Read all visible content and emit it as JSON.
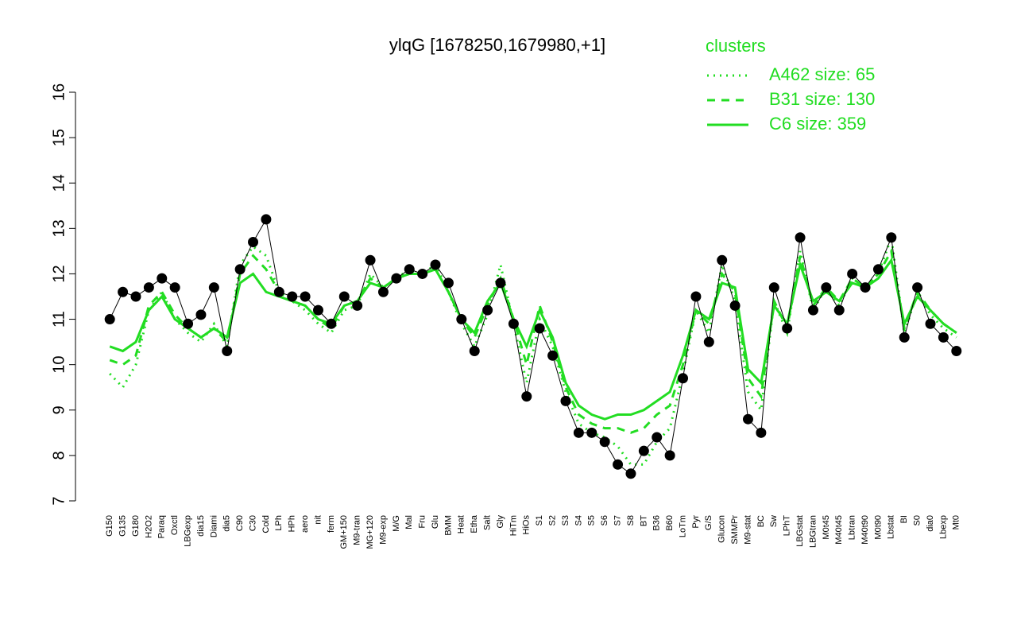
{
  "chart_data": {
    "type": "line",
    "title": "ylqG [1678250,1679980,+1]",
    "legend_title": "clusters",
    "categories": [
      "G150",
      "G135",
      "G180",
      "H2O2",
      "Paraq",
      "Oxctl",
      "LBGexp",
      "dia15",
      "Diami",
      "dia5",
      "C90",
      "C30",
      "Cold",
      "LPh",
      "HPh",
      "aero",
      "nit",
      "ferm",
      "GM+150",
      "M9-tran",
      "MG+120",
      "M9-exp",
      "M/G",
      "Mal",
      "Fru",
      "Glu",
      "BMM",
      "Heat",
      "Etha",
      "Salt",
      "Gly",
      "HiTm",
      "HiOs",
      "S1",
      "S2",
      "S3",
      "S4",
      "S5",
      "S6",
      "S7",
      "S8",
      "BT",
      "B36",
      "B60",
      "LoTm",
      "Pyr",
      "G/S",
      "Glucon",
      "SMMPr",
      "M9-stat",
      "BC",
      "Sw",
      "LPhT",
      "LBGstat",
      "LBGtran",
      "M0t45",
      "M40t45",
      "Lbtran",
      "M40t90",
      "M0t90",
      "Lbstat",
      "BI",
      "S0",
      "dia0",
      "Lbexp",
      "Mt0"
    ],
    "values": [
      11.0,
      11.6,
      11.5,
      11.7,
      11.9,
      11.7,
      10.9,
      11.1,
      11.7,
      10.3,
      12.1,
      12.7,
      13.2,
      11.6,
      11.5,
      11.5,
      11.2,
      10.9,
      11.5,
      11.3,
      12.3,
      11.6,
      11.9,
      12.1,
      12.0,
      12.2,
      11.8,
      11.0,
      10.3,
      11.2,
      11.8,
      10.9,
      9.3,
      10.8,
      10.2,
      9.2,
      8.5,
      8.5,
      8.3,
      7.8,
      7.6,
      8.1,
      8.4,
      8.0,
      9.7,
      11.5,
      10.5,
      12.3,
      11.3,
      8.8,
      8.5,
      11.7,
      10.8,
      12.8,
      11.2,
      11.7,
      11.2,
      12.0,
      11.7,
      12.1,
      12.8,
      10.6,
      11.7,
      10.9,
      10.6,
      10.3
    ],
    "color": "#000000",
    "series": [
      {
        "name": "A462 size: 65",
        "color": "#22dd22",
        "line_style": "dotted",
        "values": [
          9.8,
          9.5,
          10.0,
          11.2,
          11.6,
          11.0,
          10.7,
          10.5,
          10.9,
          10.4,
          12.2,
          12.6,
          12.4,
          11.6,
          11.4,
          11.2,
          10.9,
          10.7,
          11.2,
          11.3,
          12.0,
          11.7,
          11.9,
          12.1,
          12.0,
          12.2,
          11.6,
          10.9,
          10.4,
          11.1,
          12.2,
          10.9,
          9.6,
          11.0,
          10.4,
          9.4,
          8.7,
          8.5,
          8.4,
          8.2,
          7.8,
          7.8,
          8.3,
          8.6,
          9.8,
          11.2,
          10.7,
          12.2,
          11.4,
          9.4,
          9.0,
          11.4,
          10.7,
          12.5,
          11.2,
          11.7,
          11.3,
          11.9,
          11.7,
          12.0,
          12.8,
          10.7,
          11.6,
          11.1,
          10.8,
          10.6
        ]
      },
      {
        "name": "B31 size: 130",
        "color": "#22dd22",
        "line_style": "dashed",
        "values": [
          10.1,
          10.0,
          10.2,
          11.3,
          11.6,
          11.1,
          10.8,
          10.6,
          10.8,
          10.5,
          12.0,
          12.4,
          12.1,
          11.6,
          11.4,
          11.3,
          11.0,
          10.8,
          11.3,
          11.4,
          11.9,
          11.7,
          11.9,
          12.0,
          12.0,
          12.1,
          11.6,
          11.0,
          10.6,
          11.3,
          11.9,
          11.0,
          10.0,
          11.3,
          10.5,
          9.5,
          8.9,
          8.7,
          8.6,
          8.6,
          8.5,
          8.6,
          8.9,
          9.1,
          10.0,
          11.2,
          10.9,
          12.0,
          11.6,
          9.7,
          9.3,
          11.4,
          10.8,
          12.4,
          11.3,
          11.7,
          11.4,
          11.9,
          11.7,
          12.0,
          12.5,
          10.8,
          11.6,
          11.2,
          10.9,
          10.7
        ]
      },
      {
        "name": "C6 size: 359",
        "color": "#22dd22",
        "line_style": "solid",
        "values": [
          10.4,
          10.3,
          10.5,
          11.2,
          11.5,
          11.0,
          10.8,
          10.6,
          10.8,
          10.6,
          11.8,
          12.0,
          11.6,
          11.5,
          11.4,
          11.3,
          11.0,
          10.9,
          11.3,
          11.4,
          11.8,
          11.7,
          11.9,
          12.0,
          12.0,
          12.1,
          11.6,
          11.0,
          10.7,
          11.4,
          11.8,
          11.0,
          10.4,
          11.2,
          10.6,
          9.6,
          9.1,
          8.9,
          8.8,
          8.9,
          8.9,
          9.0,
          9.2,
          9.4,
          10.2,
          11.2,
          11.0,
          11.8,
          11.7,
          9.9,
          9.6,
          11.3,
          10.9,
          12.2,
          11.4,
          11.6,
          11.4,
          11.8,
          11.7,
          11.9,
          12.3,
          10.9,
          11.5,
          11.2,
          10.9,
          10.7
        ]
      }
    ],
    "ylim": [
      7,
      16
    ],
    "yticks": [
      7,
      8,
      9,
      10,
      11,
      12,
      13,
      14,
      15,
      16
    ]
  }
}
